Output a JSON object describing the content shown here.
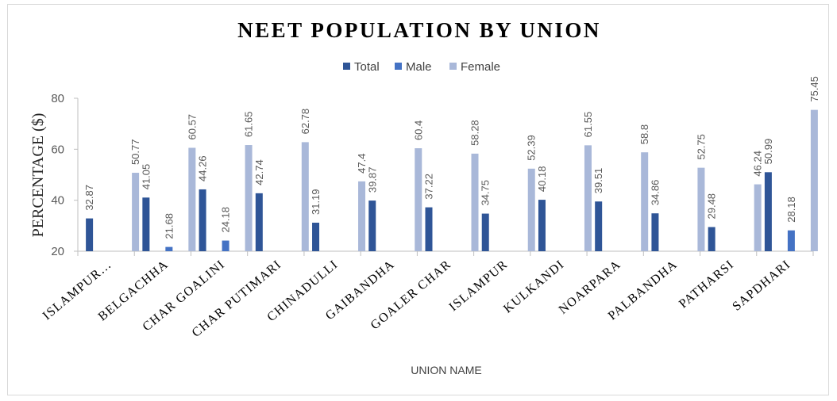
{
  "chart_data": {
    "type": "bar",
    "title": "NEET POPULATION BY UNION",
    "xlabel": "UNION NAME",
    "ylabel": "PERCENTAGE ($)",
    "ylim": [
      20,
      80
    ],
    "yticks": [
      20,
      40,
      60,
      80
    ],
    "legend_position": "top",
    "grid": false,
    "categories": [
      "ISLAMPUR…",
      "BELGACHHA",
      "CHAR GOALINI",
      "CHAR PUTIMARI",
      "CHINADULLI",
      "GAIBANDHA",
      "GOALER CHAR",
      "ISLAMPUR",
      "KULKANDI",
      "NOARPARA",
      "PALBANDHA",
      "PATHARSI",
      "SAPDHARI"
    ],
    "series": [
      {
        "name": "Total",
        "color": "#2f5597",
        "values": [
          32.87,
          41.05,
          44.26,
          42.74,
          31.19,
          39.87,
          37.22,
          34.75,
          40.18,
          39.51,
          34.86,
          29.48,
          50.99
        ]
      },
      {
        "name": "Male",
        "color": "#4472c4",
        "values": [
          null,
          21.68,
          24.18,
          null,
          null,
          null,
          null,
          null,
          null,
          null,
          null,
          null,
          28.18
        ]
      },
      {
        "name": "Female",
        "color": "#a9b8d9",
        "values": [
          50.77,
          60.57,
          61.65,
          62.78,
          47.4,
          60.4,
          58.28,
          52.39,
          61.55,
          58.8,
          52.75,
          46.24,
          75.45
        ]
      }
    ]
  }
}
